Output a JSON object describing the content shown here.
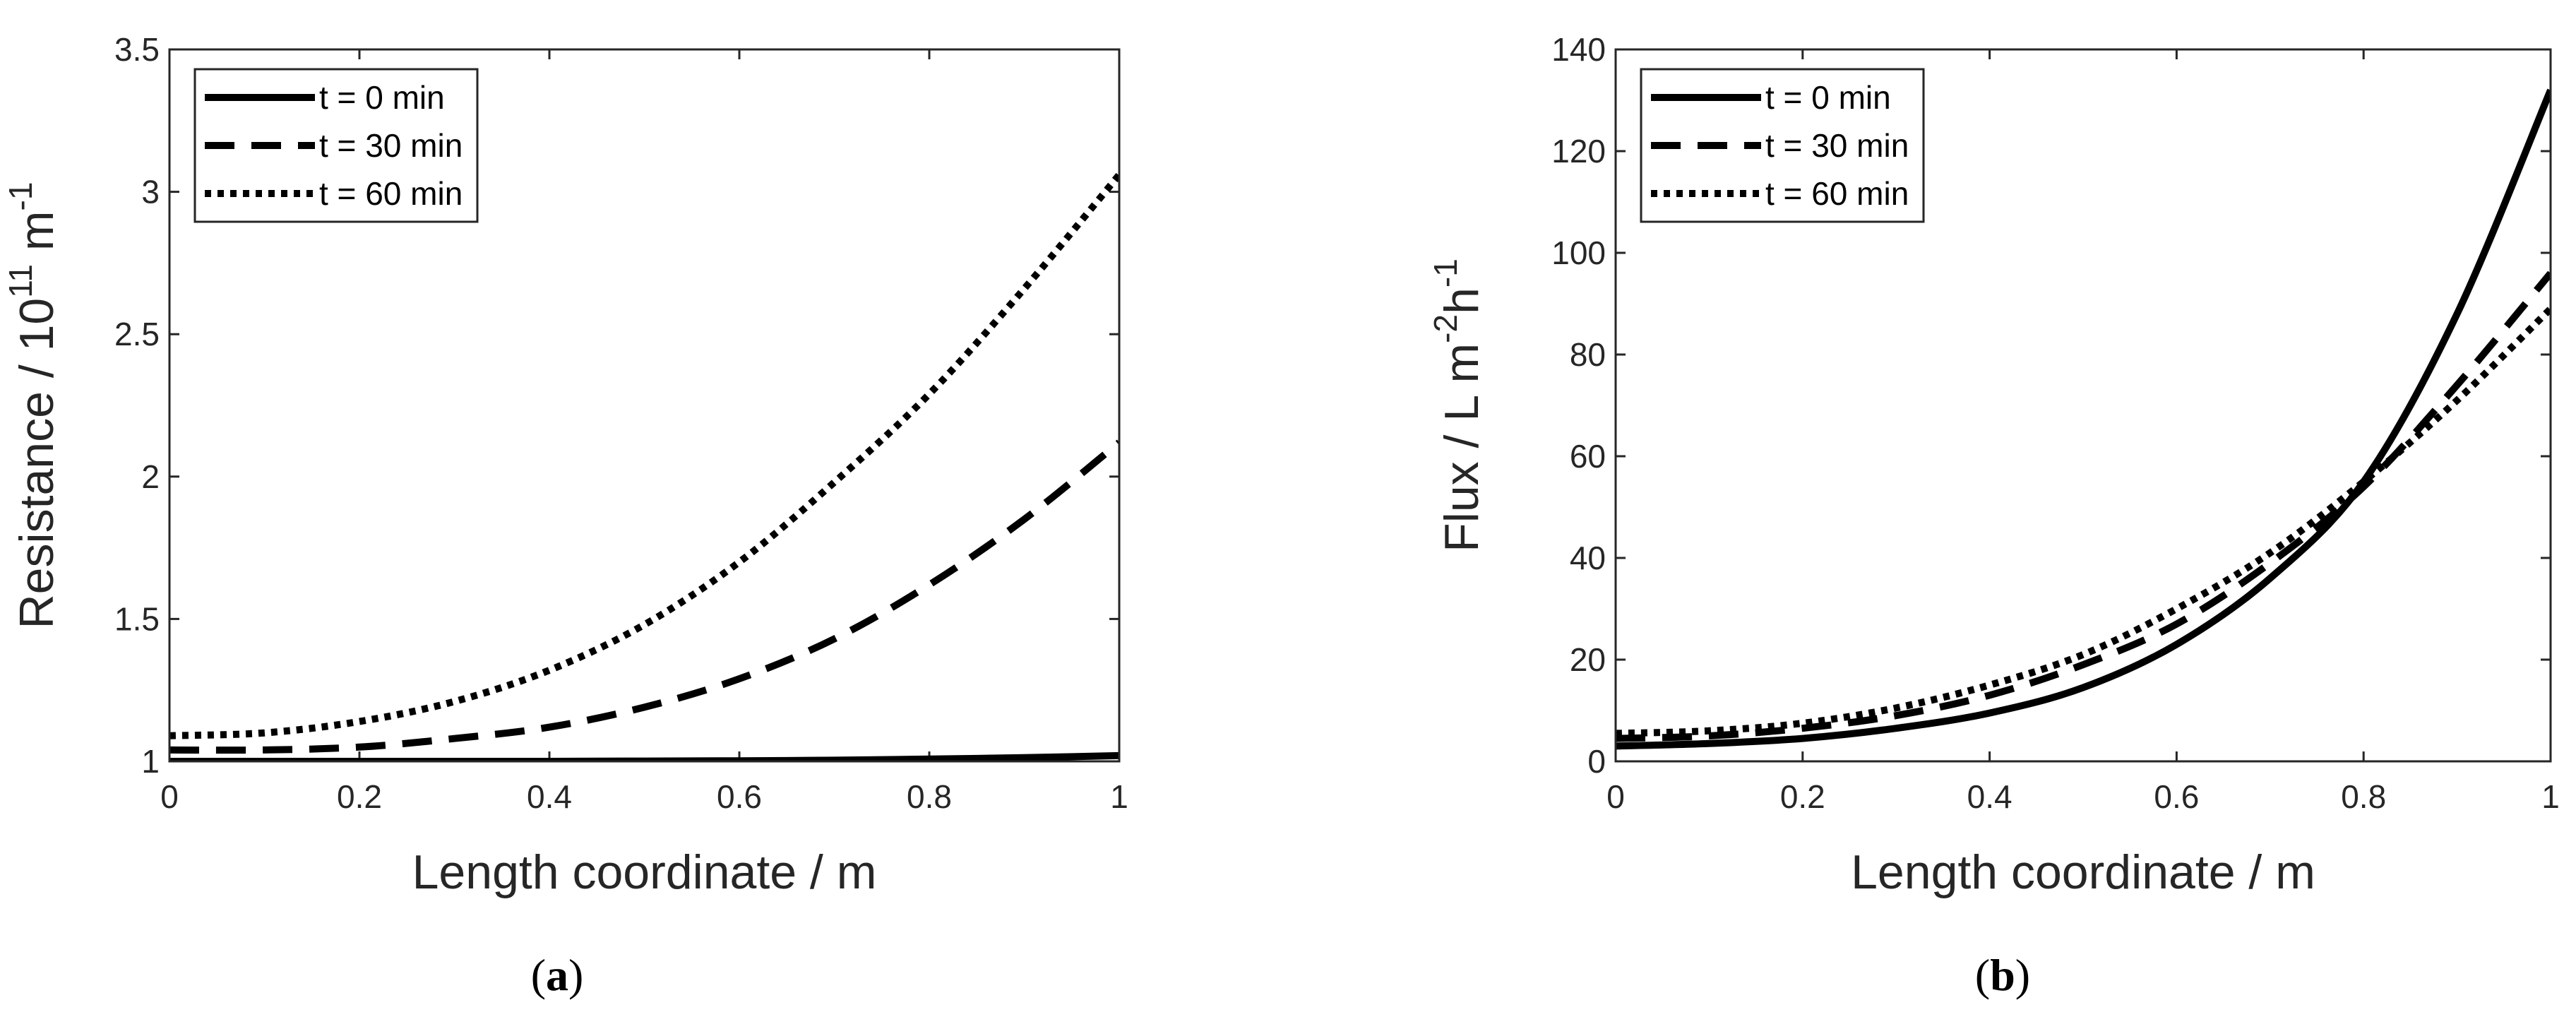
{
  "chart_data": [
    {
      "type": "line",
      "panel": "a",
      "caption": {
        "open": "(",
        "letter": "a",
        "close": ")"
      },
      "xlabel": "Length coordinate / m",
      "ylabel": {
        "text": "Resistance / 10",
        "sup1": "11",
        "mid": " m",
        "sup2": "-1"
      },
      "xlim": [
        0,
        1
      ],
      "ylim": [
        1,
        3.5
      ],
      "xticks": [
        0,
        0.2,
        0.4,
        0.6,
        0.8,
        1
      ],
      "xtick_labels": [
        "0",
        "0.2",
        "0.4",
        "0.6",
        "0.8",
        "1"
      ],
      "yticks": [
        1,
        1.5,
        2,
        2.5,
        3,
        3.5
      ],
      "ytick_labels": [
        "1",
        "1.5",
        "2",
        "2.5",
        "3",
        "3.5"
      ],
      "legend_position": "top-left",
      "x": [
        0,
        0.1,
        0.2,
        0.3,
        0.4,
        0.5,
        0.6,
        0.7,
        0.8,
        0.9,
        1.0
      ],
      "series": [
        {
          "name": "t = 0 min",
          "style": "solid",
          "values": [
            1.0,
            1.0,
            1.0,
            1.0,
            1.0,
            1.001,
            1.002,
            1.004,
            1.008,
            1.013,
            1.02
          ]
        },
        {
          "name": "t = 30 min",
          "style": "dashed",
          "values": [
            1.04,
            1.04,
            1.05,
            1.08,
            1.12,
            1.19,
            1.29,
            1.43,
            1.62,
            1.85,
            2.12
          ]
        },
        {
          "name": "t = 60 min",
          "style": "dotted",
          "values": [
            1.09,
            1.1,
            1.14,
            1.21,
            1.32,
            1.48,
            1.7,
            1.98,
            2.29,
            2.66,
            3.06
          ]
        }
      ]
    },
    {
      "type": "line",
      "panel": "b",
      "caption": {
        "open": "(",
        "letter": "b",
        "close": ")"
      },
      "xlabel": "Length coordinate / m",
      "ylabel": {
        "text": "Flux / L m",
        "sup1": "-2",
        "mid": "h",
        "sup2": "-1"
      },
      "xlim": [
        0,
        1
      ],
      "ylim": [
        0,
        140
      ],
      "xticks": [
        0,
        0.2,
        0.4,
        0.6,
        0.8,
        1
      ],
      "xtick_labels": [
        "0",
        "0.2",
        "0.4",
        "0.6",
        "0.8",
        "1"
      ],
      "yticks": [
        0,
        20,
        40,
        60,
        80,
        100,
        120,
        140
      ],
      "ytick_labels": [
        "0",
        "20",
        "40",
        "60",
        "80",
        "100",
        "120",
        "140"
      ],
      "legend_position": "top-left",
      "x": [
        0,
        0.1,
        0.2,
        0.3,
        0.4,
        0.5,
        0.6,
        0.7,
        0.8,
        0.9,
        1.0
      ],
      "series": [
        {
          "name": "t = 0 min",
          "style": "solid",
          "values": [
            3,
            3.5,
            4.5,
            6.5,
            9.5,
            14.5,
            23,
            36,
            55,
            88,
            132
          ]
        },
        {
          "name": "t = 30 min",
          "style": "dashed",
          "values": [
            4.5,
            5,
            6.5,
            9,
            13,
            19,
            27,
            39,
            54,
            74,
            96
          ]
        },
        {
          "name": "t = 60 min",
          "style": "dotted",
          "values": [
            5.5,
            6,
            7.5,
            10.5,
            15,
            21,
            30,
            41,
            55,
            71,
            89
          ]
        }
      ]
    }
  ]
}
